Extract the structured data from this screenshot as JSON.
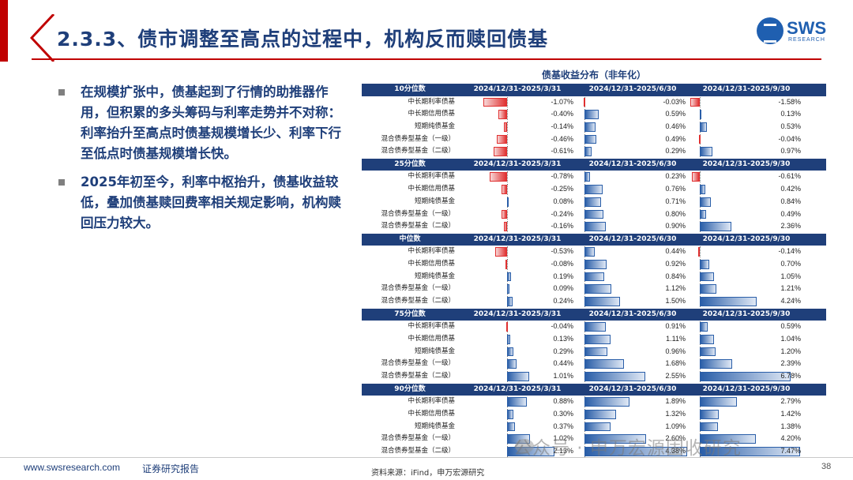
{
  "header": {
    "title": "2.3.3、债市调整至高点的过程中，机构反而赎回债基",
    "logo_text": "SWS",
    "logo_sub": "RESEARCH"
  },
  "bullets": [
    "在规模扩张中，债基起到了行情的助推器作用，但积累的多头筹码与利率走势并不对称：利率抬升至高点时债基规模增长少、利率下行至低点时债基规模增长快。",
    "2025年初至今，利率中枢抬升，债基收益较低，叠加债基赎回费率相关规定影响，机构赎回压力较大。"
  ],
  "table": {
    "title": "债基收益分布（非年化）",
    "periods": [
      "2024/12/31-2025/3/31",
      "2024/12/31-2025/6/30",
      "2024/12/31-2025/9/30"
    ],
    "row_labels": [
      "中长期利率债基",
      "中长期信用债基",
      "短期纯债基金",
      "混合债券型基金（一级）",
      "混合债券型基金（二级）"
    ],
    "groups": [
      {
        "name": "10分位数",
        "rows": [
          [
            "-1.07%",
            "-0.03%",
            "-1.58%"
          ],
          [
            "-0.40%",
            "0.59%",
            "0.13%"
          ],
          [
            "-0.14%",
            "0.46%",
            "0.53%"
          ],
          [
            "-0.46%",
            "0.49%",
            "-0.04%"
          ],
          [
            "-0.61%",
            "0.29%",
            "0.97%"
          ]
        ]
      },
      {
        "name": "25分位数",
        "rows": [
          [
            "-0.78%",
            "0.23%",
            "-0.61%"
          ],
          [
            "-0.25%",
            "0.76%",
            "0.42%"
          ],
          [
            "0.08%",
            "0.71%",
            "0.84%"
          ],
          [
            "-0.24%",
            "0.80%",
            "0.49%"
          ],
          [
            "-0.16%",
            "0.90%",
            "2.36%"
          ]
        ]
      },
      {
        "name": "中位数",
        "rows": [
          [
            "-0.53%",
            "0.44%",
            "-0.14%"
          ],
          [
            "-0.08%",
            "0.92%",
            "0.70%"
          ],
          [
            "0.19%",
            "0.84%",
            "1.05%"
          ],
          [
            "0.09%",
            "1.12%",
            "1.21%"
          ],
          [
            "0.24%",
            "1.50%",
            "4.24%"
          ]
        ]
      },
      {
        "name": "75分位数",
        "rows": [
          [
            "-0.04%",
            "0.91%",
            "0.59%"
          ],
          [
            "0.13%",
            "1.11%",
            "1.04%"
          ],
          [
            "0.29%",
            "0.96%",
            "1.20%"
          ],
          [
            "0.44%",
            "1.68%",
            "2.39%"
          ],
          [
            "1.01%",
            "2.55%",
            "6.78%"
          ]
        ]
      },
      {
        "name": "90分位数",
        "rows": [
          [
            "0.88%",
            "1.89%",
            "2.79%"
          ],
          [
            "0.30%",
            "1.32%",
            "1.42%"
          ],
          [
            "0.37%",
            "1.09%",
            "1.38%"
          ],
          [
            "1.02%",
            "2.60%",
            "4.20%"
          ],
          [
            "2.13%",
            "4.38%",
            "7.47%"
          ]
        ]
      }
    ]
  },
  "footer": {
    "url": "www.swsresearch.com",
    "report": "证券研究报告",
    "source": "资料来源：iFind，申万宏源研究",
    "page": "38",
    "watermark": "公众号 · 申万宏源固收研究"
  },
  "colors": {
    "navy": "#1f3f7a",
    "accent_red": "#c00000",
    "bar_blue": "#2a5ea8",
    "bar_red": "#e03030"
  }
}
